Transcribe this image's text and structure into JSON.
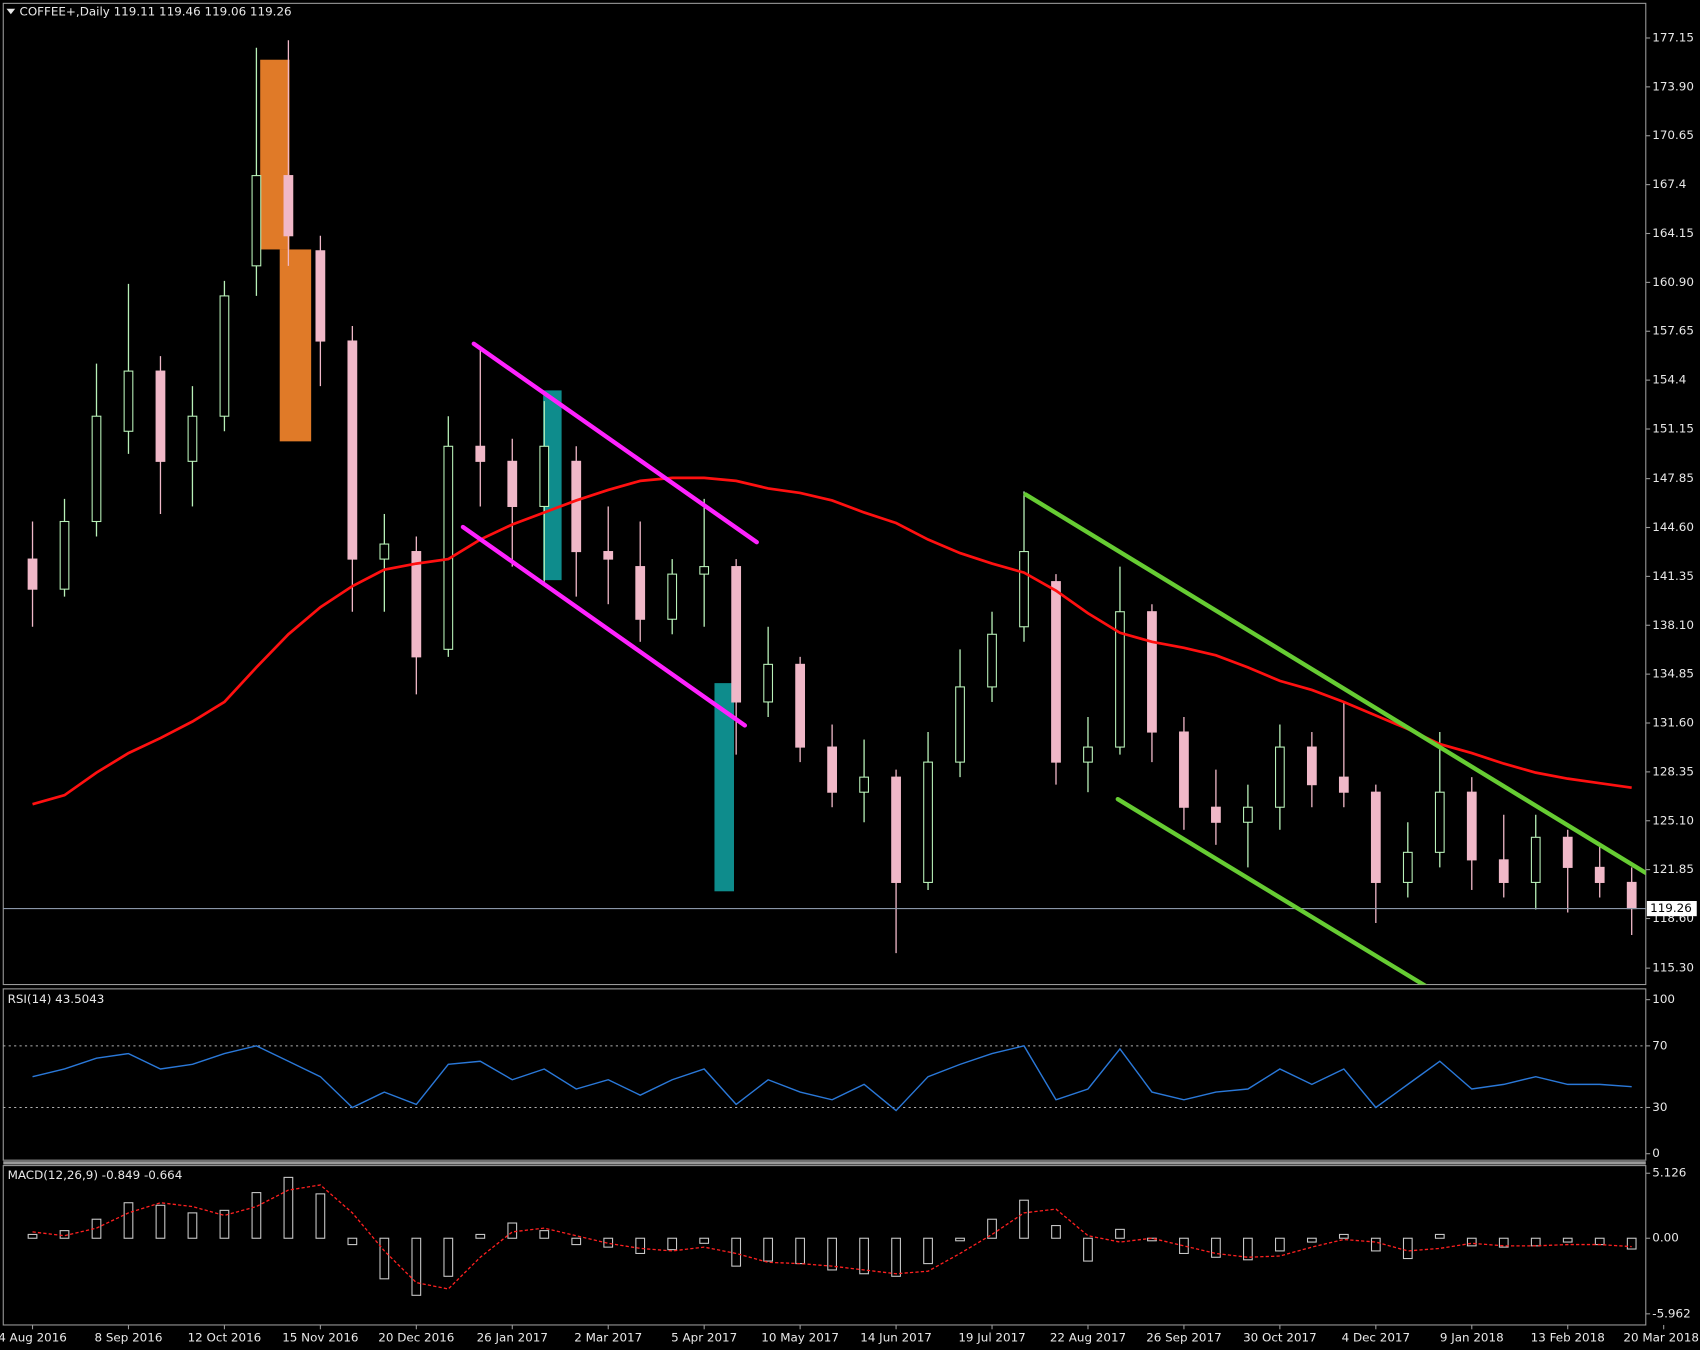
{
  "chart_data": [
    {
      "type": "candlestick",
      "title": "COFFEE+,Daily  119.11 119.46 119.06 119.26",
      "categories": [
        "4 Aug 2016",
        null,
        null,
        "8 Sep 2016",
        null,
        null,
        "12 Oct 2016",
        null,
        null,
        "15 Nov 2016",
        null,
        null,
        "20 Dec 2016",
        null,
        null,
        "26 Jan 2017",
        null,
        null,
        "2 Mar 2017",
        null,
        null,
        "5 Apr 2017",
        null,
        null,
        "10 May 2017",
        null,
        null,
        "14 Jun 2017",
        null,
        null,
        "19 Jul 2017",
        null,
        null,
        "22 Aug 2017",
        null,
        null,
        "26 Sep 2017",
        null,
        null,
        "30 Oct 2017",
        null,
        null,
        "4 Dec 2017",
        null,
        null,
        "9 Jan 2018",
        null,
        null,
        "13 Feb 2018",
        null,
        null,
        "20 Mar 2018"
      ],
      "open": [
        142.5,
        140.5,
        145,
        151,
        155,
        149,
        152,
        162,
        168,
        163,
        157,
        142.5,
        143,
        136.5,
        150,
        149,
        146,
        149,
        143,
        142,
        138.5,
        141.5,
        142,
        133,
        135.5,
        130,
        127,
        128,
        121,
        129,
        134,
        138,
        141,
        129,
        130,
        139,
        131,
        126,
        125,
        126,
        130,
        128,
        127,
        121,
        123,
        127,
        122.5,
        121,
        124,
        122,
        121,
        null
      ],
      "high": [
        145,
        146.5,
        155.5,
        160.8,
        156,
        154,
        161,
        176.5,
        177,
        164,
        158,
        145.5,
        144,
        152,
        156.5,
        150.5,
        153,
        150,
        146,
        145,
        142.5,
        146.5,
        142.5,
        138,
        136,
        131.5,
        130.5,
        128.5,
        131,
        136.5,
        139,
        147,
        141.5,
        132,
        142,
        139.5,
        132,
        128.5,
        127.5,
        131.5,
        131,
        133,
        127.5,
        125,
        131,
        128,
        125.5,
        125.5,
        124.5,
        123.5,
        122,
        null
      ],
      "low": [
        138,
        140,
        144,
        149.5,
        145.5,
        146,
        151,
        160,
        162,
        154,
        139,
        139,
        133.5,
        136,
        146,
        142,
        141,
        140,
        139.5,
        137,
        137.5,
        138,
        129.5,
        132,
        129,
        126,
        125,
        116.3,
        120.5,
        128,
        133,
        137,
        127.5,
        127,
        129.5,
        129,
        124.5,
        123.5,
        122,
        124.5,
        126,
        126,
        118.3,
        120,
        122,
        120.5,
        120,
        119.2,
        119,
        120,
        117.5,
        null
      ],
      "close": [
        140.5,
        145,
        152,
        155,
        149,
        152,
        160,
        168,
        164,
        157,
        142.5,
        143.5,
        136,
        150,
        149,
        146,
        150,
        143,
        142.5,
        138.5,
        141.5,
        142,
        133,
        135.5,
        130,
        127,
        128,
        121,
        129,
        134,
        137.5,
        143,
        129,
        130,
        139,
        131,
        126,
        125,
        126,
        130,
        127.5,
        127,
        121,
        123,
        127,
        122.5,
        121,
        124,
        122,
        121,
        119.26,
        null
      ],
      "up_color": "#b8f0b8",
      "down_color": "#f0b8c8",
      "ma_values": [
        126.2,
        126.8,
        128.3,
        129.6,
        130.6,
        131.7,
        133.0,
        135.3,
        137.5,
        139.3,
        140.7,
        141.8,
        142.2,
        142.5,
        143.8,
        144.8,
        145.6,
        146.4,
        147.1,
        147.7,
        147.9,
        147.9,
        147.7,
        147.2,
        146.9,
        146.4,
        145.6,
        144.9,
        143.8,
        142.9,
        142.2,
        141.6,
        140.4,
        138.9,
        137.6,
        137.0,
        136.6,
        136.1,
        135.3,
        134.4,
        133.8,
        133.0,
        132.1,
        131.2,
        130.2,
        129.6,
        128.9,
        128.3,
        127.9,
        127.6,
        127.3,
        null
      ],
      "ma_color": "#ff1010",
      "last_price": 119.26,
      "ylim": [
        114.21,
        179.67
      ],
      "yticks": [
        177.15,
        {
          "value": 173.9,
          "label": "173.90"
        },
        170.65,
        167.4,
        164.15,
        {
          "value": 160.9,
          "label": "160.90"
        },
        157.65,
        154.4,
        151.15,
        147.85,
        {
          "value": 144.6,
          "label": "144.60"
        },
        141.35,
        {
          "value": 138.1,
          "label": "138.10"
        },
        134.85,
        {
          "value": 131.6,
          "label": "131.60"
        },
        128.35,
        {
          "value": 125.1,
          "label": "125.10"
        },
        121.85,
        {
          "value": 118.6,
          "label": "118.60"
        },
        {
          "value": 115.3,
          "label": "115.30"
        }
      ]
    },
    {
      "type": "line",
      "title": "RSI(14) 43.5043",
      "values": [
        50,
        55,
        62,
        65,
        55,
        58,
        65,
        70,
        60,
        50,
        30,
        40,
        32,
        58,
        60,
        48,
        55,
        42,
        48,
        38,
        48,
        55,
        32,
        48,
        40,
        35,
        45,
        28,
        50,
        58,
        65,
        70,
        35,
        42,
        68,
        40,
        35,
        40,
        42,
        55,
        45,
        55,
        30,
        45,
        60,
        42,
        45,
        50,
        45,
        45,
        43.5,
        null
      ],
      "color": "#2a78d8",
      "dashed_levels": [
        70,
        30
      ],
      "ylim": [
        -4.2,
        107
      ],
      "yticks": [
        100,
        70,
        30,
        0
      ]
    },
    {
      "type": "macd",
      "title": "MACD(12,26,9) -0.849 -0.664",
      "histogram": [
        0.3,
        0.6,
        1.5,
        2.8,
        2.6,
        2.0,
        2.2,
        3.6,
        4.8,
        3.5,
        -0.5,
        -3.2,
        -4.5,
        -3.0,
        0.3,
        1.2,
        0.6,
        -0.5,
        -0.7,
        -1.2,
        -0.9,
        -0.4,
        -2.2,
        -1.8,
        -2.0,
        -2.5,
        -2.8,
        -3.0,
        -2.0,
        -0.2,
        1.5,
        3.0,
        1.0,
        -1.8,
        0.7,
        -0.2,
        -1.2,
        -1.5,
        -1.7,
        -1.0,
        -0.3,
        0.3,
        -1.0,
        -1.6,
        0.3,
        -0.6,
        -0.7,
        -0.6,
        -0.3,
        -0.5,
        -0.85,
        null
      ],
      "signal": [
        0.5,
        0.2,
        0.8,
        2.0,
        2.8,
        2.5,
        1.8,
        2.5,
        3.8,
        4.2,
        2.0,
        -1.0,
        -3.5,
        -4.0,
        -1.5,
        0.5,
        0.8,
        0.2,
        -0.4,
        -0.8,
        -1.0,
        -0.7,
        -1.2,
        -1.9,
        -2.0,
        -2.2,
        -2.5,
        -2.8,
        -2.6,
        -1.2,
        0.3,
        2.0,
        2.3,
        0.2,
        -0.3,
        0.0,
        -0.6,
        -1.2,
        -1.5,
        -1.4,
        -0.7,
        -0.1,
        -0.3,
        -1.0,
        -0.8,
        -0.4,
        -0.6,
        -0.6,
        -0.5,
        -0.5,
        -0.66,
        null
      ],
      "histogram_color": "#c8c8c8",
      "signal_color": "#ff2020",
      "ylim": [
        -6.84,
        5.73
      ],
      "yticks": [
        5.126,
        {
          "value": 0,
          "label": "0.00"
        },
        -5.962
      ]
    }
  ]
}
